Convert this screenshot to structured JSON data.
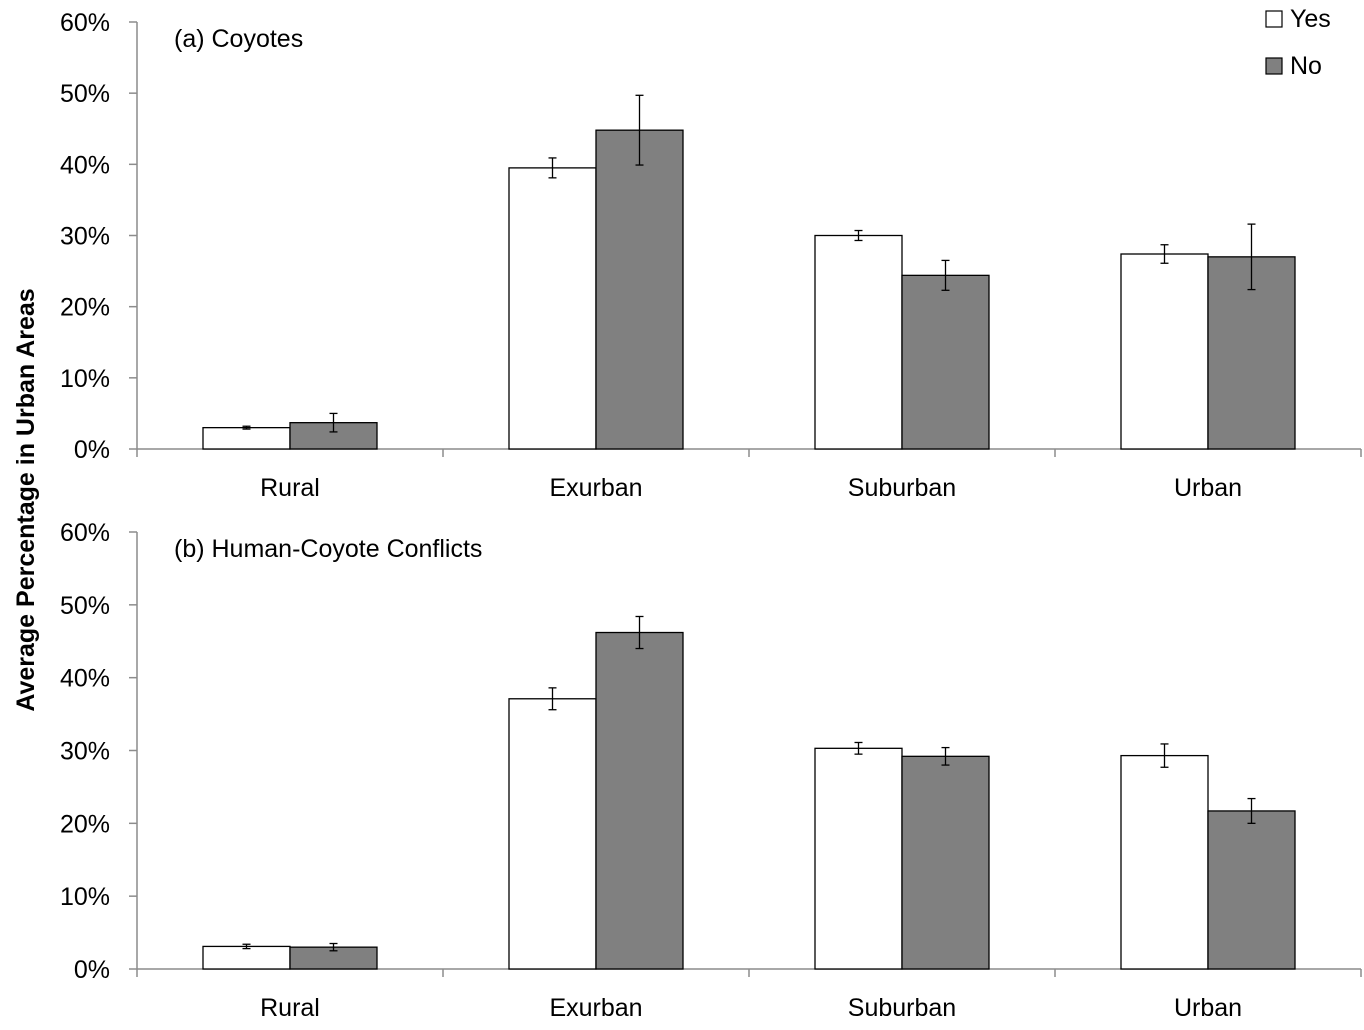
{
  "y_axis_label": "Average Percentage in Urban Areas",
  "legend": [
    {
      "label": "Yes",
      "color": "#ffffff"
    },
    {
      "label": "No",
      "color": "#808080"
    }
  ],
  "colors": {
    "axis": "#8c8c8c",
    "bar_stroke": "#000000"
  },
  "chart_data": [
    {
      "type": "bar",
      "title": "(a) Coyotes",
      "categories": [
        "Rural",
        "Exurban",
        "Suburban",
        "Urban"
      ],
      "ylim": [
        0,
        60
      ],
      "yticks": [
        0,
        10,
        20,
        30,
        40,
        50,
        60
      ],
      "ytick_labels": [
        "0%",
        "10%",
        "20%",
        "30%",
        "40%",
        "50%",
        "60%"
      ],
      "series": [
        {
          "name": "Yes",
          "color": "#ffffff",
          "values": [
            3.0,
            39.5,
            30.0,
            27.4
          ],
          "errors": [
            0.2,
            1.4,
            0.7,
            1.3
          ]
        },
        {
          "name": "No",
          "color": "#808080",
          "values": [
            3.7,
            44.8,
            24.4,
            27.0
          ],
          "errors": [
            1.3,
            4.9,
            2.1,
            4.6
          ]
        }
      ]
    },
    {
      "type": "bar",
      "title": "(b) Human-Coyote Conflicts",
      "categories": [
        "Rural",
        "Exurban",
        "Suburban",
        "Urban"
      ],
      "ylim": [
        0,
        60
      ],
      "yticks": [
        0,
        10,
        20,
        30,
        40,
        50,
        60
      ],
      "ytick_labels": [
        "0%",
        "10%",
        "20%",
        "30%",
        "40%",
        "50%",
        "60%"
      ],
      "series": [
        {
          "name": "Yes",
          "color": "#ffffff",
          "values": [
            3.1,
            37.1,
            30.3,
            29.3
          ],
          "errors": [
            0.3,
            1.5,
            0.8,
            1.6
          ]
        },
        {
          "name": "No",
          "color": "#808080",
          "values": [
            3.0,
            46.2,
            29.2,
            21.7
          ],
          "errors": [
            0.5,
            2.2,
            1.2,
            1.7
          ]
        }
      ]
    }
  ]
}
